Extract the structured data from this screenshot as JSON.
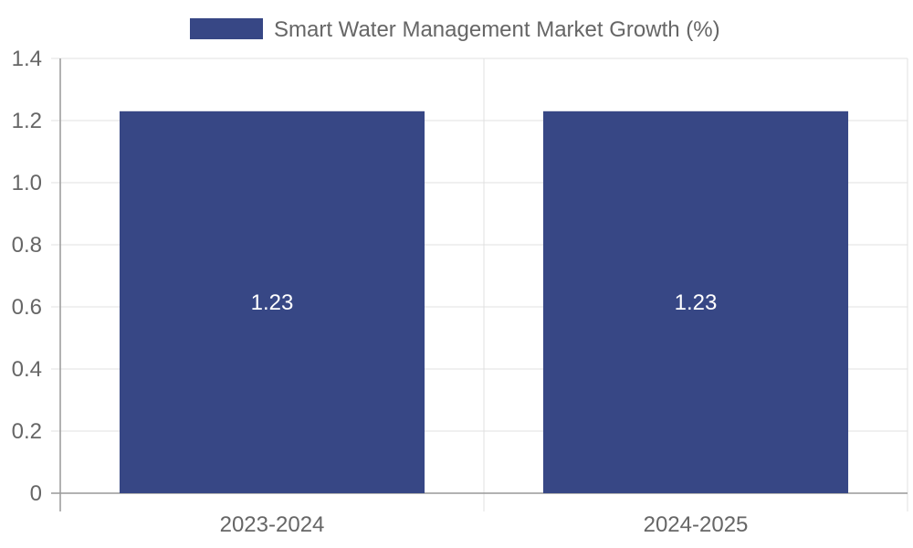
{
  "chart_data": {
    "type": "bar",
    "categories": [
      "2023-2024",
      "2024-2025"
    ],
    "series": [
      {
        "name": "Smart Water Management Market Growth (%)",
        "values": [
          1.23,
          1.23
        ],
        "color": "#374785"
      }
    ],
    "data_labels": [
      "1.23",
      "1.23"
    ],
    "y_ticks": [
      "0",
      "0.2",
      "0.4",
      "0.6",
      "0.8",
      "1.0",
      "1.2",
      "1.4"
    ],
    "ylim": [
      0,
      1.4
    ],
    "grid": true,
    "legend_position": "top-center",
    "colors": {
      "bar": "#374785",
      "grid": "#e0e0e0",
      "axis": "#999999",
      "text": "#666666",
      "data_label": "#ffffff"
    }
  }
}
